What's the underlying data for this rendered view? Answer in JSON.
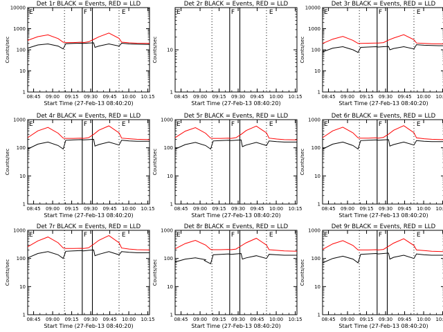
{
  "chart_data": [
    {
      "type": "line",
      "title": "Det 1r BLACK = Events, RED = LLD",
      "ylabel": "Counts/sec",
      "xlabel": "Start Time (27-Feb-13 08:40:20)",
      "ylim": [
        1,
        10000
      ],
      "yscale": "log",
      "ytick_labels": [
        "1",
        "10",
        "100",
        "1000",
        "10000"
      ],
      "xtick_labels": [
        "08:45",
        "09:00",
        "09:15",
        "09:30",
        "09:45",
        "10:00",
        "10:15"
      ],
      "xlim": [
        0,
        96
      ],
      "markers": [
        {
          "label": "E",
          "t": 0
        },
        {
          "label": "F",
          "t": 43
        },
        {
          "label": "E",
          "t": 73
        }
      ],
      "dotted_t": [
        29,
        72
      ],
      "solid_t": [
        43,
        51
      ],
      "series": [
        {
          "color": "#ff0000",
          "t": [
            0,
            8,
            16,
            24,
            28,
            30,
            36,
            42,
            44,
            48,
            52,
            56,
            64,
            72,
            74,
            80,
            86,
            96
          ],
          "v": [
            280,
            420,
            510,
            340,
            230,
            220,
            220,
            230,
            220,
            240,
            310,
            410,
            620,
            350,
            230,
            215,
            205,
            200
          ]
        },
        {
          "color": "#000000",
          "t": [
            0,
            8,
            16,
            24,
            28,
            30,
            36,
            42,
            44,
            48,
            52,
            53,
            56,
            64,
            72,
            74,
            80,
            86,
            96
          ],
          "v": [
            120,
            170,
            190,
            150,
            110,
            195,
            200,
            205,
            200,
            210,
            215,
            130,
            150,
            190,
            150,
            205,
            190,
            185,
            180
          ]
        }
      ]
    },
    {
      "type": "line",
      "title": "Det 2r BLACK = Events, RED = LLD",
      "ylabel": "Counts/sec",
      "xlabel": "Start Time (27-Feb-13 08:40:20)",
      "ylim": [
        1,
        100
      ],
      "yscale": "log",
      "ytick_labels": [
        "1",
        "10"
      ],
      "xtick_labels": [
        "08:45",
        "09:00",
        "09:15",
        "09:30",
        "09:45",
        "10:00",
        "10:15"
      ],
      "xlim": [
        0,
        96
      ],
      "markers": [
        {
          "label": "E",
          "t": 0
        },
        {
          "label": "F",
          "t": 43
        },
        {
          "label": "E",
          "t": 73
        }
      ],
      "dotted_t": [
        29,
        72
      ],
      "solid_t": [
        43,
        51
      ],
      "series": []
    },
    {
      "type": "line",
      "title": "Det 3r BLACK = Events, RED = LLD",
      "ylabel": "Counts/sec",
      "xlabel": "Start Time (27-Feb-13 08:40:20)",
      "ylim": [
        1,
        10000
      ],
      "yscale": "log",
      "ytick_labels": [
        "1",
        "10",
        "100",
        "1000",
        "10000"
      ],
      "xtick_labels": [
        "08:45",
        "09:00",
        "09:15",
        "09:30",
        "09:45",
        "10:00",
        "10:15"
      ],
      "xlim": [
        0,
        96
      ],
      "markers": [
        {
          "label": "E",
          "t": 0
        },
        {
          "label": "F",
          "t": 43
        },
        {
          "label": "E",
          "t": 73
        }
      ],
      "dotted_t": [
        29,
        72
      ],
      "solid_t": [
        43,
        51
      ],
      "series": [
        {
          "color": "#ff0000",
          "t": [
            0,
            8,
            16,
            24,
            28,
            30,
            36,
            42,
            44,
            48,
            52,
            56,
            64,
            72,
            74,
            80,
            86,
            96
          ],
          "v": [
            200,
            320,
            430,
            280,
            200,
            200,
            205,
            210,
            210,
            220,
            290,
            360,
            520,
            300,
            210,
            200,
            195,
            190
          ]
        },
        {
          "color": "#000000",
          "t": [
            0,
            8,
            16,
            24,
            28,
            30,
            36,
            42,
            44,
            48,
            52,
            53,
            56,
            64,
            72,
            74,
            80,
            86,
            96
          ],
          "v": [
            80,
            120,
            140,
            100,
            75,
            130,
            135,
            140,
            135,
            140,
            145,
            100,
            115,
            140,
            110,
            175,
            165,
            160,
            155
          ]
        }
      ]
    },
    {
      "type": "line",
      "title": "Det 4r BLACK = Events, RED = LLD",
      "ylabel": "Counts/sec",
      "xlabel": "Start Time (27-Feb-13 08:40:20)",
      "ylim": [
        1,
        1000
      ],
      "yscale": "log",
      "ytick_labels": [
        "1",
        "10",
        "100",
        "1000"
      ],
      "xtick_labels": [
        "08:45",
        "09:00",
        "09:15",
        "09:30",
        "09:45",
        "10:00",
        "10:15"
      ],
      "xlim": [
        0,
        96
      ],
      "markers": [
        {
          "label": "E",
          "t": 0
        },
        {
          "label": "F",
          "t": 43
        },
        {
          "label": "E",
          "t": 73
        }
      ],
      "dotted_t": [
        29,
        72
      ],
      "solid_t": [
        43,
        51
      ],
      "series": [
        {
          "color": "#ff0000",
          "t": [
            0,
            8,
            16,
            24,
            28,
            30,
            36,
            42,
            44,
            48,
            52,
            56,
            64,
            72,
            74,
            80,
            86,
            96
          ],
          "v": [
            230,
            400,
            530,
            330,
            220,
            215,
            215,
            220,
            215,
            230,
            300,
            420,
            600,
            340,
            220,
            210,
            200,
            195
          ]
        },
        {
          "color": "#000000",
          "t": [
            0,
            8,
            16,
            24,
            28,
            30,
            36,
            42,
            44,
            48,
            52,
            53,
            56,
            64,
            72,
            74,
            80,
            86,
            96
          ],
          "v": [
            90,
            135,
            160,
            120,
            90,
            185,
            190,
            195,
            190,
            195,
            200,
            115,
            130,
            160,
            125,
            185,
            175,
            170,
            170
          ]
        }
      ]
    },
    {
      "type": "line",
      "title": "Det 5r BLACK = Events, RED = LLD",
      "ylabel": "Counts/sec",
      "xlabel": "Start Time (27-Feb-13 08:40:20)",
      "ylim": [
        1,
        1000
      ],
      "yscale": "log",
      "ytick_labels": [
        "1",
        "10",
        "100",
        "1000"
      ],
      "xtick_labels": [
        "08:45",
        "09:00",
        "09:15",
        "09:30",
        "09:45",
        "10:00",
        "10:15"
      ],
      "xlim": [
        0,
        96
      ],
      "markers": [
        {
          "label": "E",
          "t": 0
        },
        {
          "label": "F",
          "t": 43
        },
        {
          "label": "E",
          "t": 73
        }
      ],
      "dotted_t": [
        29,
        72
      ],
      "solid_t": [
        43,
        51
      ],
      "series": [
        {
          "color": "#ff0000",
          "t": [
            0,
            8,
            16,
            24,
            28,
            30,
            36,
            42,
            44,
            48,
            52,
            56,
            64,
            72,
            74,
            80,
            86,
            96
          ],
          "v": [
            230,
            390,
            520,
            330,
            220,
            215,
            215,
            220,
            215,
            230,
            300,
            410,
            590,
            340,
            220,
            205,
            195,
            190
          ]
        },
        {
          "color": "#000000",
          "t": [
            0,
            8,
            16,
            24,
            28,
            30,
            36,
            42,
            44,
            48,
            52,
            53,
            56,
            64,
            72,
            74,
            80,
            86,
            96
          ],
          "v": [
            90,
            130,
            155,
            120,
            90,
            175,
            180,
            185,
            180,
            185,
            190,
            110,
            125,
            155,
            120,
            175,
            165,
            160,
            160
          ]
        }
      ]
    },
    {
      "type": "line",
      "title": "Det 6r BLACK = Events, RED = LLD",
      "ylabel": "Counts/sec",
      "xlabel": "Start Time (27-Feb-13 08:40:20)",
      "ylim": [
        1,
        1000
      ],
      "yscale": "log",
      "ytick_labels": [
        "1",
        "10",
        "100",
        "1000"
      ],
      "xtick_labels": [
        "08:45",
        "09:00",
        "09:15",
        "09:30",
        "09:45",
        "10:00",
        "10:15"
      ],
      "xlim": [
        0,
        96
      ],
      "markers": [
        {
          "label": "E",
          "t": 0
        },
        {
          "label": "F",
          "t": 43
        },
        {
          "label": "E",
          "t": 73
        }
      ],
      "dotted_t": [
        29,
        72
      ],
      "solid_t": [
        43,
        51
      ],
      "series": [
        {
          "color": "#ff0000",
          "t": [
            0,
            8,
            16,
            24,
            28,
            30,
            36,
            42,
            44,
            48,
            52,
            56,
            64,
            72,
            74,
            80,
            86,
            96
          ],
          "v": [
            230,
            400,
            540,
            340,
            225,
            220,
            220,
            225,
            220,
            235,
            305,
            420,
            610,
            345,
            225,
            210,
            200,
            195
          ]
        },
        {
          "color": "#000000",
          "t": [
            0,
            8,
            16,
            24,
            28,
            30,
            36,
            42,
            44,
            48,
            52,
            53,
            56,
            64,
            72,
            74,
            80,
            86,
            96
          ],
          "v": [
            90,
            135,
            160,
            120,
            90,
            180,
            185,
            190,
            185,
            190,
            195,
            115,
            130,
            160,
            125,
            180,
            170,
            165,
            165
          ]
        }
      ]
    },
    {
      "type": "line",
      "title": "Det 7r BLACK = Events, RED = LLD",
      "ylabel": "Counts/sec",
      "xlabel": "Start Time (27-Feb-13 08:40:20)",
      "ylim": [
        1,
        1000
      ],
      "yscale": "log",
      "ytick_labels": [
        "1",
        "10",
        "100",
        "1000"
      ],
      "xtick_labels": [
        "08:45",
        "09:00",
        "09:15",
        "09:30",
        "09:45",
        "10:00",
        "10:15"
      ],
      "xlim": [
        0,
        96
      ],
      "markers": [
        {
          "label": "E",
          "t": 0
        },
        {
          "label": "F",
          "t": 43
        },
        {
          "label": "E",
          "t": 73
        }
      ],
      "dotted_t": [
        29,
        72
      ],
      "solid_t": [
        43,
        51
      ],
      "series": [
        {
          "color": "#ff0000",
          "t": [
            0,
            8,
            16,
            24,
            28,
            30,
            36,
            42,
            44,
            48,
            52,
            56,
            64,
            72,
            74,
            80,
            86,
            96
          ],
          "v": [
            260,
            420,
            580,
            360,
            235,
            225,
            225,
            230,
            225,
            240,
            320,
            440,
            650,
            360,
            235,
            215,
            205,
            200
          ]
        },
        {
          "color": "#000000",
          "t": [
            0,
            8,
            16,
            24,
            28,
            30,
            36,
            42,
            44,
            48,
            52,
            53,
            56,
            64,
            72,
            74,
            80,
            86,
            96
          ],
          "v": [
            105,
            150,
            175,
            135,
            100,
            180,
            185,
            190,
            185,
            195,
            200,
            125,
            140,
            175,
            135,
            175,
            165,
            160,
            160
          ]
        }
      ]
    },
    {
      "type": "line",
      "title": "Det 8r BLACK = Events, RED = LLD",
      "ylabel": "Counts/sec",
      "xlabel": "Start Time (27-Feb-13 08:40:20)",
      "ylim": [
        1,
        1000
      ],
      "yscale": "log",
      "ytick_labels": [
        "1",
        "10",
        "100",
        "1000"
      ],
      "xtick_labels": [
        "08:45",
        "09:00",
        "09:15",
        "09:30",
        "09:45",
        "10:00",
        "10:15"
      ],
      "xlim": [
        0,
        96
      ],
      "markers": [
        {
          "label": "E",
          "t": 0
        },
        {
          "label": "F",
          "t": 43
        },
        {
          "label": "E",
          "t": 73
        }
      ],
      "dotted_t": [
        29,
        72
      ],
      "solid_t": [
        43,
        51
      ],
      "series": [
        {
          "color": "#ff0000",
          "t": [
            0,
            8,
            16,
            24,
            28,
            30,
            36,
            42,
            44,
            48,
            52,
            56,
            64,
            72,
            74,
            80,
            86,
            96
          ],
          "v": [
            220,
            340,
            440,
            300,
            210,
            205,
            205,
            210,
            205,
            215,
            280,
            360,
            520,
            300,
            205,
            195,
            185,
            180
          ]
        },
        {
          "color": "#000000",
          "t": [
            0,
            8,
            16,
            24,
            23,
            24,
            28,
            30,
            36,
            42,
            44,
            48,
            52,
            53,
            56,
            64,
            72,
            74,
            80,
            86,
            96
          ],
          "v": [
            75,
            95,
            105,
            90,
            85,
            80,
            65,
            135,
            140,
            145,
            140,
            145,
            150,
            95,
            105,
            125,
            100,
            140,
            135,
            130,
            130
          ]
        }
      ]
    },
    {
      "type": "line",
      "title": "Det 9r BLACK = Events, RED = LLD",
      "ylabel": "Counts/sec",
      "xlabel": "Start Time (27-Feb-13 08:40:20)",
      "ylim": [
        1,
        1000
      ],
      "yscale": "log",
      "ytick_labels": [
        "1",
        "10",
        "100",
        "1000"
      ],
      "xtick_labels": [
        "08:45",
        "09:00",
        "09:15",
        "09:30",
        "09:45",
        "10:00",
        "10:15"
      ],
      "xlim": [
        0,
        96
      ],
      "markers": [
        {
          "label": "E",
          "t": 0
        },
        {
          "label": "F",
          "t": 43
        },
        {
          "label": "E",
          "t": 73
        }
      ],
      "dotted_t": [
        29,
        72
      ],
      "solid_t": [
        43,
        51
      ],
      "series": [
        {
          "color": "#ff0000",
          "t": [
            0,
            8,
            16,
            24,
            28,
            30,
            36,
            42,
            44,
            48,
            52,
            56,
            64,
            72,
            74,
            80,
            86,
            96
          ],
          "v": [
            210,
            330,
            430,
            290,
            200,
            200,
            200,
            205,
            200,
            210,
            270,
            350,
            500,
            290,
            200,
            190,
            180,
            175
          ]
        },
        {
          "color": "#000000",
          "t": [
            0,
            8,
            16,
            24,
            28,
            30,
            36,
            42,
            44,
            48,
            52,
            53,
            56,
            64,
            72,
            74,
            80,
            86,
            96
          ],
          "v": [
            70,
            100,
            120,
            95,
            70,
            140,
            145,
            150,
            145,
            150,
            155,
            95,
            110,
            130,
            100,
            145,
            135,
            130,
            130
          ]
        }
      ]
    }
  ]
}
